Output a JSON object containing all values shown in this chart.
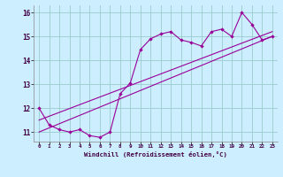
{
  "xlabel": "Windchill (Refroidissement éolien,°C)",
  "xlim": [
    -0.5,
    23.5
  ],
  "ylim": [
    10.6,
    16.3
  ],
  "yticks": [
    11,
    12,
    13,
    14,
    15,
    16
  ],
  "xticks": [
    0,
    1,
    2,
    3,
    4,
    5,
    6,
    7,
    8,
    9,
    10,
    11,
    12,
    13,
    14,
    15,
    16,
    17,
    18,
    19,
    20,
    21,
    22,
    23
  ],
  "bg_color": "#cceeff",
  "line_color": "#990099",
  "grid_color": "#99cccc",
  "line1_x": [
    0,
    1,
    2,
    3,
    4,
    5,
    6,
    7,
    8,
    9,
    10,
    11,
    12,
    13,
    14,
    15,
    16,
    17,
    18,
    19,
    20,
    21,
    22,
    23
  ],
  "line1_y": [
    12.0,
    11.3,
    11.1,
    11.0,
    11.1,
    10.85,
    10.78,
    11.0,
    12.6,
    13.05,
    14.45,
    14.9,
    15.1,
    15.2,
    14.85,
    14.75,
    14.6,
    15.2,
    15.3,
    15.0,
    16.0,
    15.5,
    14.85,
    15.0
  ],
  "line2_x": [
    0,
    23
  ],
  "line2_y": [
    11.0,
    15.0
  ],
  "line3_x": [
    0,
    23
  ],
  "line3_y": [
    11.5,
    15.2
  ]
}
